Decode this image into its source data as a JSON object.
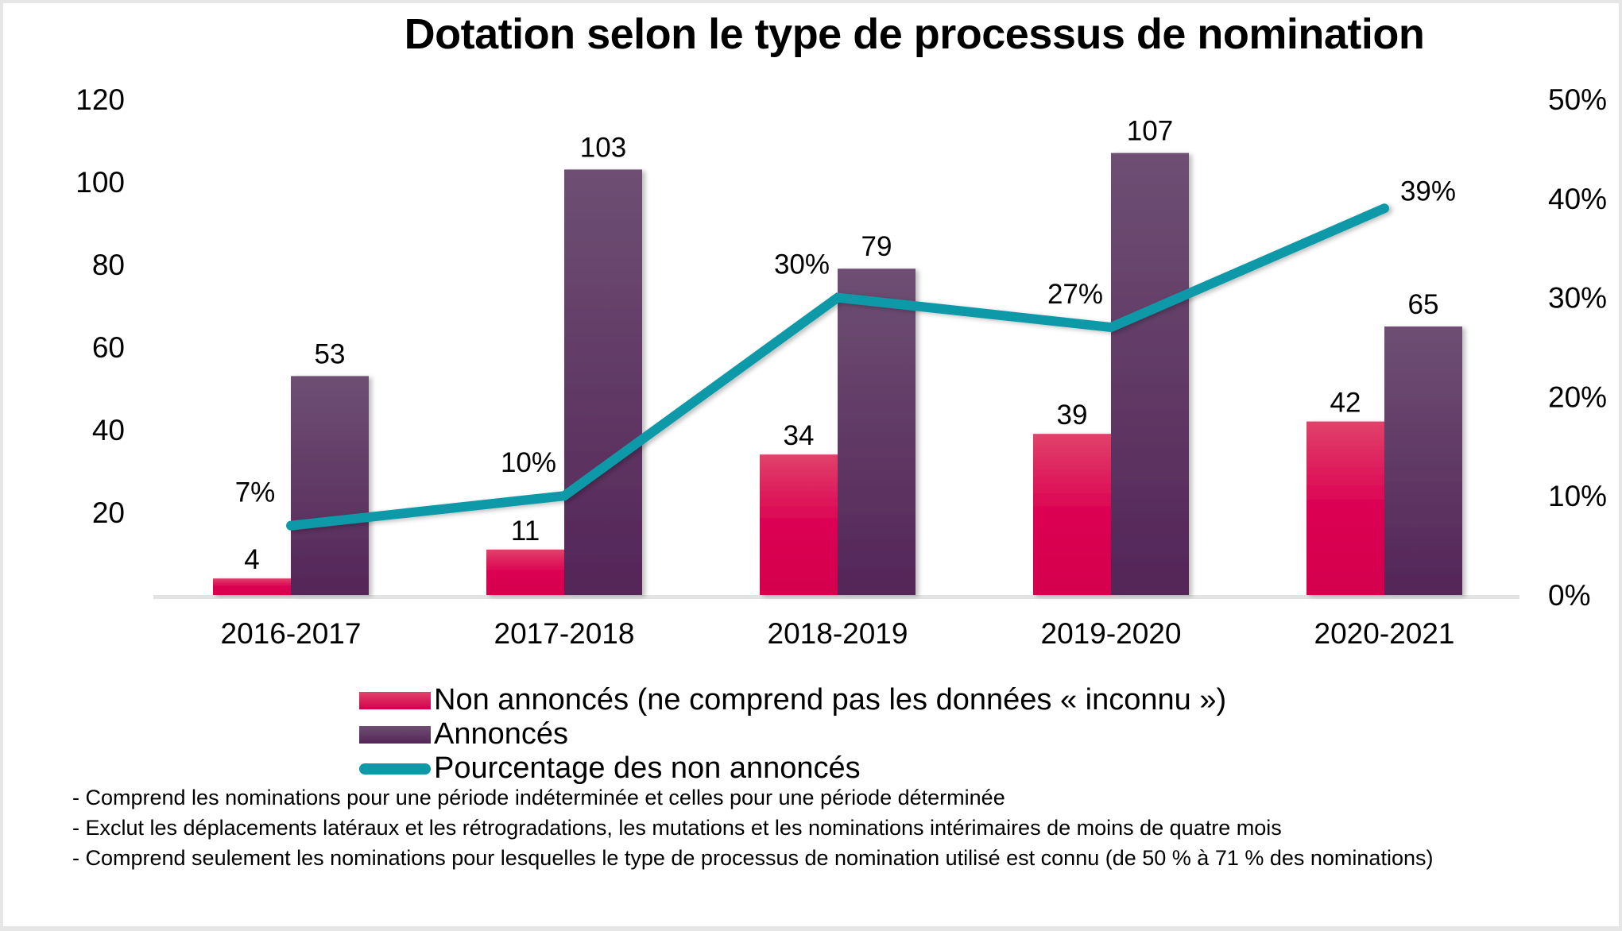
{
  "title": "Dotation selon le type de processus de nomination",
  "colors": {
    "non_annonces_top": "#E0426A",
    "non_annonces_bottom": "#D3004E",
    "annonces_top": "#6E4F73",
    "annonces_bottom": "#542558",
    "percentage_line": "#0E99A8",
    "axis_line": "#E3E3E3"
  },
  "legend": [
    {
      "label": "Non annoncés (ne comprend pas les données « inconnu »)",
      "swatch": "red-rect"
    },
    {
      "label": "Annoncés",
      "swatch": "purple-rect"
    },
    {
      "label": "Pourcentage des non annoncés",
      "swatch": "teal-line"
    }
  ],
  "notes": [
    "- Comprend les nominations pour une période indéterminée et celles pour une période déterminée",
    "- Exclut les déplacements latéraux et les rétrogradations, les mutations et les nominations intérimaires de moins de quatre mois",
    "- Comprend seulement les nominations pour lesquelles le type de processus de nomination utilisé est connu (de 50 % à 71 % des nominations)"
  ],
  "chart_data": {
    "type": "bar",
    "title": "Dotation selon le type de processus de nomination",
    "categories": [
      "2016-2017",
      "2017-2018",
      "2018-2019",
      "2019-2020",
      "2020-2021"
    ],
    "series": [
      {
        "name": "Non annoncés (ne comprend pas les données « inconnu »)",
        "type": "bar",
        "axis": "left",
        "values": [
          4,
          11,
          34,
          39,
          42
        ],
        "labels": [
          "4",
          "11",
          "34",
          "39",
          "42"
        ]
      },
      {
        "name": "Annoncés",
        "type": "bar",
        "axis": "left",
        "values": [
          53,
          103,
          79,
          107,
          65
        ],
        "labels": [
          "53",
          "103",
          "79",
          "107",
          "65"
        ]
      },
      {
        "name": "Pourcentage des non annoncés",
        "type": "line",
        "axis": "right",
        "values": [
          0.07,
          0.1,
          0.3,
          0.27,
          0.39
        ],
        "labels": [
          "7%",
          "10%",
          "30%",
          "27%",
          "39%"
        ]
      }
    ],
    "left_axis": {
      "min": 0,
      "max": 120,
      "ticks": [
        20,
        40,
        60,
        80,
        100,
        120
      ],
      "tick_labels": [
        "20",
        "40",
        "60",
        "80",
        "100",
        "120"
      ]
    },
    "right_axis": {
      "min": 0,
      "max": 0.5,
      "ticks": [
        0,
        0.1,
        0.2,
        0.3,
        0.4,
        0.5
      ],
      "tick_labels": [
        "0%",
        "10%",
        "20%",
        "30%",
        "40%",
        "50%"
      ]
    },
    "xlabel": "",
    "ylabel": "",
    "grid": false,
    "legend_position": "bottom"
  }
}
